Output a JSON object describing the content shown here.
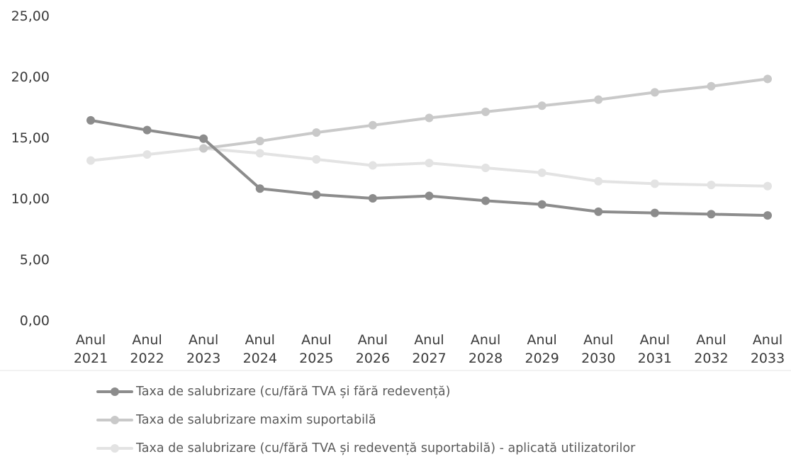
{
  "chart_data": {
    "type": "line",
    "categories": [
      [
        "Anul",
        "2021"
      ],
      [
        "Anul",
        "2022"
      ],
      [
        "Anul",
        "2023"
      ],
      [
        "Anul",
        "2024"
      ],
      [
        "Anul",
        "2025"
      ],
      [
        "Anul",
        "2026"
      ],
      [
        "Anul",
        "2027"
      ],
      [
        "Anul",
        "2028"
      ],
      [
        "Anul",
        "2029"
      ],
      [
        "Anul",
        "2030"
      ],
      [
        "Anul",
        "2031"
      ],
      [
        "Anul",
        "2032"
      ],
      [
        "Anul",
        "2033"
      ]
    ],
    "y_ticks": [
      "0,00",
      "5,00",
      "10,00",
      "15,00",
      "20,00",
      "25,00"
    ],
    "ylim": [
      0,
      25
    ],
    "grid": false,
    "legend_position": "bottom",
    "series": [
      {
        "name": "Taxa de salubrizare (cu/fără TVA și fără redevență)",
        "color": "#8c8c8c",
        "values": [
          16.4,
          15.6,
          14.9,
          10.8,
          10.3,
          10.0,
          10.2,
          9.8,
          9.5,
          8.9,
          8.8,
          8.7,
          8.6
        ]
      },
      {
        "name": "Taxa de salubrizare maxim suportabilă",
        "color": "#c9c9c9",
        "values": [
          null,
          null,
          14.1,
          14.7,
          15.4,
          16.0,
          16.6,
          17.1,
          17.6,
          18.1,
          18.7,
          19.2,
          19.8
        ]
      },
      {
        "name": "Taxa de salubrizare (cu/fără TVA și redevență suportabilă) - aplicată utilizatorilor",
        "color": "#e3e3e3",
        "values": [
          13.1,
          13.6,
          14.1,
          13.7,
          13.2,
          12.7,
          12.9,
          12.5,
          12.1,
          11.4,
          11.2,
          11.1,
          11.0
        ]
      }
    ]
  }
}
